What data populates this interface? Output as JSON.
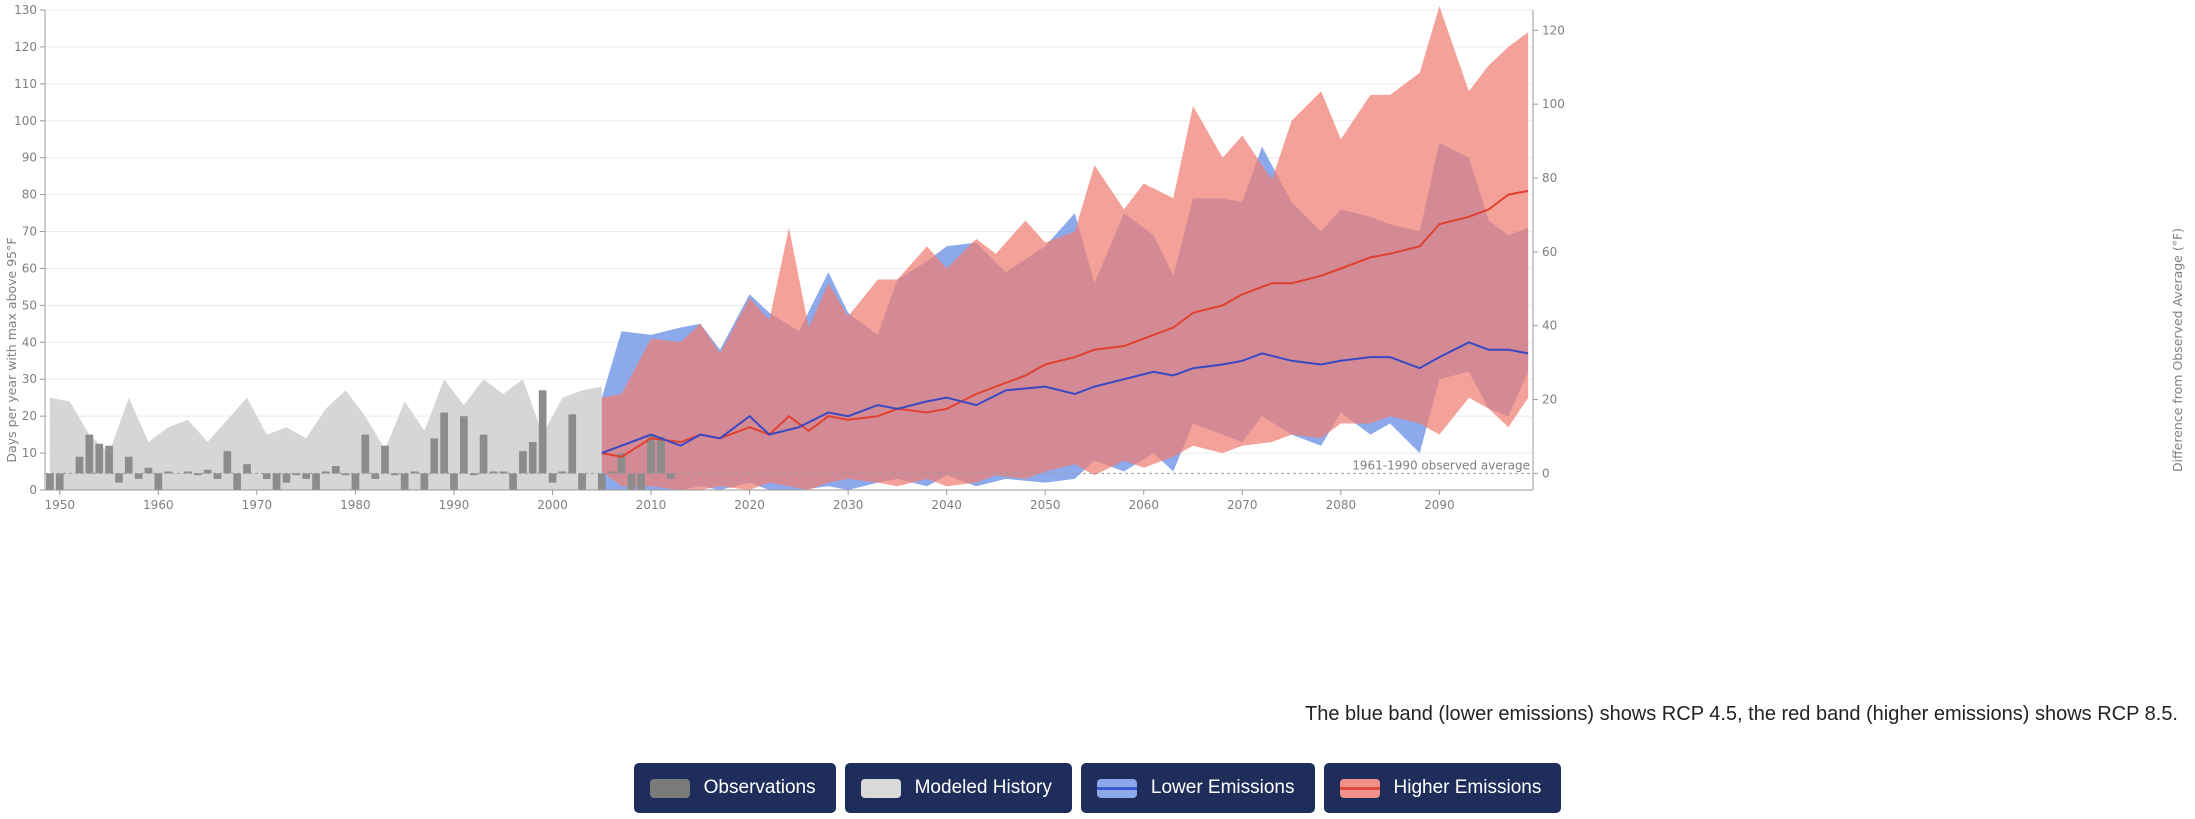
{
  "chart_data": {
    "type": "area",
    "x_range": [
      1949,
      2099
    ],
    "y_left": {
      "label": "Days per year with max above 95°F",
      "range": [
        0,
        130
      ],
      "ticks": [
        0,
        10,
        20,
        30,
        40,
        50,
        60,
        70,
        80,
        90,
        100,
        110,
        120,
        130
      ]
    },
    "y_right": {
      "label": "Difference from Observed Average (°F)",
      "ticks": [
        0,
        20,
        40,
        60,
        80,
        100,
        120
      ]
    },
    "x_ticks": [
      1950,
      1960,
      1970,
      1980,
      1990,
      2000,
      2010,
      2020,
      2030,
      2040,
      2050,
      2060,
      2070,
      2080,
      2090
    ],
    "observed_average": {
      "value": 4.5,
      "label": "1961-1990 observed average"
    },
    "observations": {
      "name": "Observations",
      "x": [
        1949,
        1950,
        1951,
        1952,
        1953,
        1954,
        1955,
        1956,
        1957,
        1958,
        1959,
        1960,
        1961,
        1962,
        1963,
        1964,
        1965,
        1966,
        1967,
        1968,
        1969,
        1970,
        1971,
        1972,
        1973,
        1974,
        1975,
        1976,
        1977,
        1978,
        1979,
        1980,
        1981,
        1982,
        1983,
        1984,
        1985,
        1986,
        1987,
        1988,
        1989,
        1990,
        1991,
        1992,
        1993,
        1994,
        1995,
        1996,
        1997,
        1998,
        1999,
        2000,
        2001,
        2002,
        2003,
        2005,
        2006,
        2007,
        2008,
        2009,
        2010,
        2011,
        2012
      ],
      "values": [
        0,
        0,
        4.5,
        9,
        15,
        12.5,
        12,
        2,
        9,
        3,
        6,
        0,
        5,
        4.5,
        5,
        4,
        5.5,
        3,
        10.5,
        0,
        7,
        4.5,
        3,
        0,
        2,
        4,
        3,
        0,
        5,
        6.5,
        4,
        0,
        15,
        3,
        12,
        4,
        0,
        5,
        0,
        14,
        21,
        0,
        20,
        4,
        15,
        5,
        5,
        0,
        10.5,
        13,
        27,
        2,
        5,
        20.5,
        0,
        0,
        5,
        10,
        0,
        0,
        15,
        14.5,
        3
      ]
    },
    "modeled_history": {
      "name": "Modeled History",
      "x": [
        1949,
        1951,
        1953,
        1955,
        1957,
        1959,
        1961,
        1963,
        1965,
        1967,
        1969,
        1971,
        1973,
        1975,
        1977,
        1979,
        1981,
        1983,
        1985,
        1987,
        1989,
        1991,
        1993,
        1995,
        1997,
        1999,
        2001,
        2003,
        2005
      ],
      "lower": [
        0,
        0,
        0,
        0,
        0,
        0,
        0,
        0,
        0,
        0,
        0,
        0,
        0,
        0,
        0,
        0,
        0,
        0,
        0,
        0,
        0,
        0,
        0,
        0,
        0,
        0,
        0,
        0,
        0
      ],
      "upper": [
        25,
        24,
        15,
        10,
        25,
        13,
        17,
        19,
        13,
        19,
        25,
        15,
        17,
        14,
        22,
        27,
        20,
        11,
        24,
        16,
        30,
        23,
        30,
        26,
        30,
        15,
        25,
        27,
        28
      ]
    },
    "lower_emissions": {
      "name": "Lower Emissions",
      "x": [
        2005,
        2007,
        2010,
        2013,
        2015,
        2017,
        2020,
        2022,
        2025,
        2028,
        2030,
        2033,
        2035,
        2038,
        2040,
        2043,
        2046,
        2050,
        2053,
        2055,
        2058,
        2061,
        2063,
        2065,
        2068,
        2070,
        2072,
        2075,
        2078,
        2080,
        2083,
        2085,
        2088,
        2090,
        2093,
        2095,
        2097,
        2099
      ],
      "lower": [
        0,
        0,
        0,
        0,
        1,
        0,
        2,
        0,
        0,
        1,
        0,
        2,
        3,
        1,
        4,
        1,
        3,
        2,
        3,
        8,
        5,
        10,
        5,
        18,
        15,
        13,
        20,
        15,
        12,
        21,
        15,
        18,
        10,
        30,
        32,
        22,
        20,
        32
      ],
      "mid": [
        10,
        12,
        15,
        12,
        15,
        14,
        20,
        15,
        17,
        21,
        20,
        23,
        22,
        24,
        25,
        23,
        27,
        28,
        26,
        28,
        30,
        32,
        31,
        33,
        34,
        35,
        37,
        35,
        34,
        35,
        36,
        36,
        33,
        36,
        40,
        38,
        38,
        37
      ],
      "upper": [
        25,
        43,
        42,
        44,
        45,
        38,
        53,
        48,
        43,
        59,
        48,
        42,
        57,
        62,
        66,
        67,
        59,
        66,
        75,
        56,
        75,
        69,
        58,
        79,
        79,
        78,
        93,
        78,
        70,
        76,
        74,
        72,
        70,
        94,
        90,
        73,
        69,
        71
      ]
    },
    "higher_emissions": {
      "name": "Higher Emissions",
      "x": [
        2005,
        2007,
        2010,
        2013,
        2015,
        2017,
        2020,
        2022,
        2024,
        2026,
        2028,
        2030,
        2033,
        2035,
        2038,
        2040,
        2043,
        2045,
        2048,
        2050,
        2053,
        2055,
        2058,
        2060,
        2063,
        2065,
        2068,
        2070,
        2073,
        2075,
        2078,
        2080,
        2083,
        2085,
        2088,
        2090,
        2093,
        2095,
        2097,
        2099
      ],
      "lower": [
        5,
        1,
        1,
        0,
        0,
        1,
        0,
        2,
        1,
        0,
        2,
        3,
        2,
        1,
        3,
        1,
        2,
        4,
        3,
        5,
        7,
        4,
        8,
        6,
        9,
        12,
        10,
        12,
        13,
        15,
        14,
        18,
        18,
        20,
        18,
        15,
        25,
        22,
        17,
        25
      ],
      "mid": [
        10,
        9,
        14,
        13,
        15,
        14,
        17,
        15,
        20,
        16,
        20,
        19,
        20,
        22,
        21,
        22,
        26,
        28,
        31,
        34,
        36,
        38,
        39,
        41,
        44,
        48,
        50,
        53,
        56,
        56,
        58,
        60,
        63,
        64,
        66,
        72,
        74,
        76,
        80,
        81
      ],
      "upper": [
        25,
        26,
        41,
        40,
        45,
        37,
        52,
        46,
        71,
        44,
        56,
        47,
        57,
        57,
        66,
        60,
        68,
        64,
        73,
        67,
        70,
        88,
        76,
        83,
        79,
        104,
        90,
        96,
        84,
        100,
        108,
        95,
        107,
        107,
        113,
        131,
        108,
        115,
        120,
        124
      ]
    }
  },
  "note": "The blue band (lower emissions) shows RCP 4.5, the red band (higher emissions) shows RCP 8.5.",
  "legend": [
    {
      "key": "observations",
      "label": "Observations",
      "color": "#7a7a7a",
      "line": ""
    },
    {
      "key": "modeled",
      "label": "Modeled History",
      "color": "#d9d9d9",
      "line": ""
    },
    {
      "key": "lower",
      "label": "Lower Emissions",
      "color": "#8aa8ea",
      "line": "#3a5bd0"
    },
    {
      "key": "higher",
      "label": "Higher Emissions",
      "color": "#f0918a",
      "line": "#e04a3a"
    }
  ],
  "colors": {
    "observations": "#8c8c8c",
    "modeled_history": "#d4d4d4",
    "lower_band": "#6f95e6",
    "lower_line": "#3949c4",
    "higher_band": "#f07e72",
    "higher_line": "#e0402e",
    "grid": "#ebebeb",
    "axis": "#999999"
  }
}
